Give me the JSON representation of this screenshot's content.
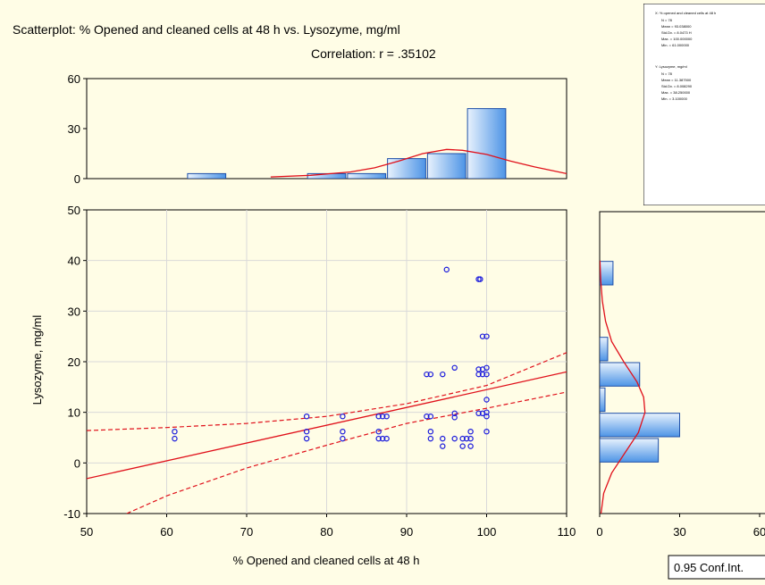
{
  "colors": {
    "background": "#fffde6",
    "point": "#1a1adc",
    "fit_line": "#e0101a",
    "bar_fill_light": "#e8f2fd",
    "bar_fill_dark": "#4d94e6",
    "bar_stroke": "#1f4fa8",
    "grid": "#d9d9d9"
  },
  "chart_data": {
    "type": "scatter",
    "title": "Scatterplot: % Opened and cleaned cells at 48 h vs. Lysozyme, mg/ml",
    "subtitle": "Correlation: r = .35102",
    "xlabel": "% Opened and cleaned cells at 48 h",
    "ylabel": "Lysozyme, mg/ml",
    "xlim": [
      50,
      110
    ],
    "ylim": [
      -10,
      50
    ],
    "x_ticks": [
      "50",
      "60",
      "70",
      "80",
      "90",
      "100",
      "110"
    ],
    "y_ticks": [
      "-10",
      "0",
      "10",
      "20",
      "30",
      "40",
      "50"
    ],
    "grid": true,
    "points": [
      [
        61,
        6.2
      ],
      [
        61,
        4.8
      ],
      [
        77.5,
        9.2
      ],
      [
        77.5,
        6.2
      ],
      [
        77.5,
        4.8
      ],
      [
        82,
        9.2
      ],
      [
        82,
        6.2
      ],
      [
        82,
        4.8
      ],
      [
        86.5,
        9.2
      ],
      [
        86.5,
        6.2
      ],
      [
        86.5,
        4.8
      ],
      [
        87,
        9.2
      ],
      [
        87,
        4.8
      ],
      [
        87.5,
        9.2
      ],
      [
        87.5,
        4.8
      ],
      [
        92.5,
        17.5
      ],
      [
        93,
        17.5
      ],
      [
        92.5,
        9.2
      ],
      [
        93,
        9.2
      ],
      [
        93,
        6.2
      ],
      [
        93,
        4.8
      ],
      [
        94.5,
        17.5
      ],
      [
        94.5,
        4.8
      ],
      [
        94.5,
        3.3
      ],
      [
        95,
        38.2
      ],
      [
        96,
        18.8
      ],
      [
        96,
        9.8
      ],
      [
        96,
        9.0
      ],
      [
        96,
        4.8
      ],
      [
        97,
        4.8
      ],
      [
        97,
        3.3
      ],
      [
        97.5,
        4.8
      ],
      [
        98,
        6.2
      ],
      [
        98,
        4.8
      ],
      [
        98,
        3.3
      ],
      [
        99,
        36.3
      ],
      [
        99.2,
        36.3
      ],
      [
        99,
        17.5
      ],
      [
        99,
        18.5
      ],
      [
        99,
        9.8
      ],
      [
        99.5,
        25
      ],
      [
        99.5,
        17.5
      ],
      [
        99.5,
        18.5
      ],
      [
        99.5,
        9.8
      ],
      [
        100,
        25
      ],
      [
        100,
        18.8
      ],
      [
        100,
        17.5
      ],
      [
        100,
        12.5
      ],
      [
        100,
        10
      ],
      [
        100,
        9.2
      ],
      [
        100,
        6.2
      ]
    ],
    "regression_line": {
      "x": [
        50,
        110
      ],
      "y": [
        -3.1,
        18.0
      ]
    },
    "confidence_upper": {
      "x": [
        50,
        60,
        70,
        80,
        90,
        100,
        110
      ],
      "y": [
        6.4,
        7.0,
        7.8,
        9.2,
        11.7,
        15.3,
        21.8
      ]
    },
    "confidence_lower": {
      "x": [
        55,
        60,
        70,
        80,
        90,
        100,
        110
      ],
      "y": [
        -10,
        -6.5,
        -1.0,
        3.5,
        7.8,
        10.8,
        14.0
      ]
    },
    "x_histogram": {
      "ylim": [
        0,
        60
      ],
      "y_ticks": [
        "60",
        "30",
        "0"
      ],
      "bins": [
        {
          "from": 52.5,
          "to": 57.5,
          "count": 0
        },
        {
          "from": 57.5,
          "to": 62.5,
          "count": 0
        },
        {
          "from": 62.5,
          "to": 67.5,
          "count": 3
        },
        {
          "from": 67.5,
          "to": 72.5,
          "count": 0
        },
        {
          "from": 72.5,
          "to": 77.5,
          "count": 0
        },
        {
          "from": 77.5,
          "to": 82.5,
          "count": 3
        },
        {
          "from": 82.5,
          "to": 87.5,
          "count": 3
        },
        {
          "from": 87.5,
          "to": 92.5,
          "count": 12
        },
        {
          "from": 92.5,
          "to": 97.5,
          "count": 15
        },
        {
          "from": 97.5,
          "to": 102.5,
          "count": 42
        }
      ],
      "normal_curve": {
        "x": [
          73,
          78,
          83,
          86,
          89,
          92,
          95,
          97,
          100,
          103,
          106,
          110
        ],
        "y": [
          1.0,
          2.0,
          4.0,
          6.5,
          10.5,
          15.0,
          17.5,
          17.0,
          14.5,
          10.5,
          7.0,
          3.0
        ]
      }
    },
    "y_histogram": {
      "xlim": [
        0,
        60
      ],
      "x_ticks": [
        "0",
        "30",
        "60"
      ],
      "bins": [
        {
          "from": 35,
          "to": 40,
          "count": 5
        },
        {
          "from": 20,
          "to": 25,
          "count": 3
        },
        {
          "from": 15,
          "to": 20,
          "count": 15
        },
        {
          "from": 10,
          "to": 15,
          "count": 2
        },
        {
          "from": 5,
          "to": 10,
          "count": 30
        },
        {
          "from": 0,
          "to": 5,
          "count": 22
        }
      ],
      "normal_curve": {
        "y": [
          -10,
          -6,
          -2,
          2,
          6,
          10,
          13,
          16,
          20,
          24,
          28,
          32,
          36,
          40
        ],
        "x": [
          0.5,
          1.5,
          4.5,
          9.5,
          14.5,
          17.0,
          16.5,
          14.0,
          9.0,
          4.5,
          2.2,
          1.0,
          0.4,
          0.1
        ]
      }
    },
    "stats_box": {
      "x_header": "X: % opened and cleaned cells at 48 h",
      "x_lines": [
        "N = 78",
        "Mean = 93.038000",
        "Std.Dv. = 8.0473 H",
        "Max. = 100.000000",
        "Min. = 61.000000"
      ],
      "y_header": "Y: Lysozyme, mg/ml",
      "y_lines": [
        "N = 78",
        "Mean = 11.387500",
        "Std.Dv. = 8.008290",
        "Max. = 38.250000",
        "Min. = 3.100000"
      ]
    },
    "conf_label": "0.95 Conf.Int."
  }
}
